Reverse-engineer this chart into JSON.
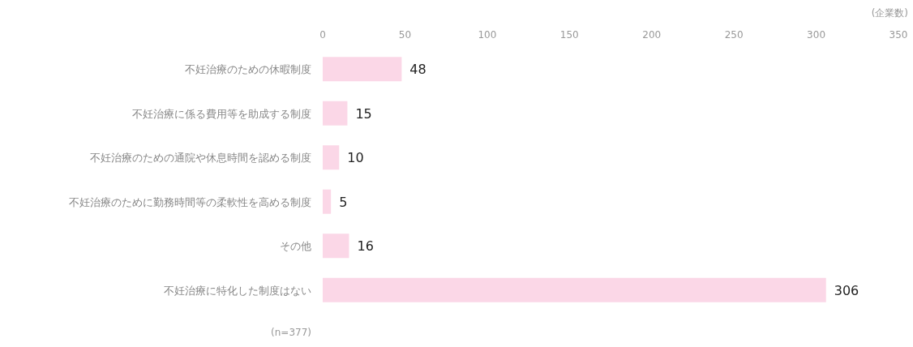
{
  "chart_data": {
    "type": "bar",
    "orientation": "horizontal",
    "xlabel": "(企業数)",
    "categories": [
      "不妊治療のための休暇制度",
      "不妊治療に係る費用等を助成する制度",
      "不妊治療のための通院や休息時間を認める制度",
      "不妊治療のために勤務時間等の柔軟性を高める制度",
      "その他",
      "不妊治療に特化した制度はない"
    ],
    "values": [
      48,
      15,
      10,
      5,
      16,
      306
    ],
    "color": "#fbd7e7",
    "data_labels": true,
    "xlim": [
      0,
      350
    ],
    "xticks": [
      0,
      50,
      100,
      150,
      200,
      250,
      300,
      350
    ],
    "grid": false,
    "annotations": [
      "(n=377)"
    ]
  }
}
